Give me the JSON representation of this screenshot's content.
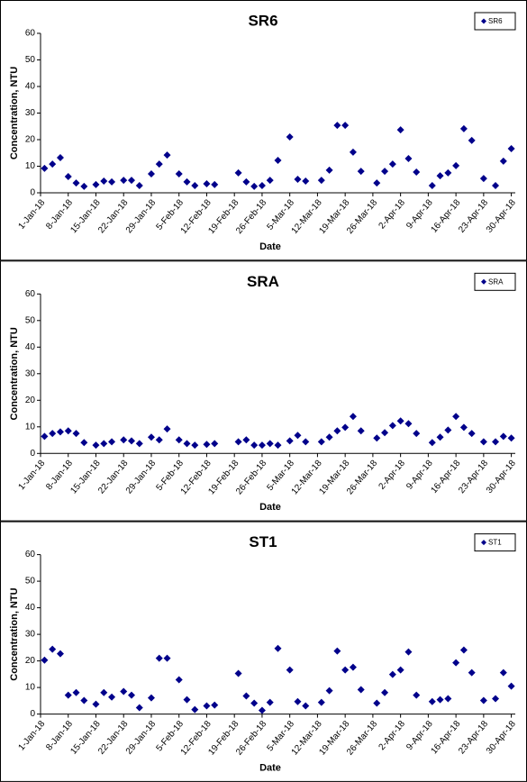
{
  "chart_data": [
    {
      "type": "scatter",
      "title": "SR6",
      "x_label": "Date",
      "y_label": "Concentration, NTU",
      "legend": "top-right",
      "marker": "diamond",
      "x": [
        "2018-01-02",
        "2018-01-04",
        "2018-01-06",
        "2018-01-08",
        "2018-01-10",
        "2018-01-12",
        "2018-01-15",
        "2018-01-17",
        "2018-01-19",
        "2018-01-22",
        "2018-01-24",
        "2018-01-26",
        "2018-01-29",
        "2018-01-31",
        "2018-02-02",
        "2018-02-05",
        "2018-02-07",
        "2018-02-09",
        "2018-02-12",
        "2018-02-14",
        "2018-02-20",
        "2018-02-22",
        "2018-02-24",
        "2018-02-26",
        "2018-02-28",
        "2018-03-02",
        "2018-03-05",
        "2018-03-07",
        "2018-03-09",
        "2018-03-13",
        "2018-03-15",
        "2018-03-17",
        "2018-03-19",
        "2018-03-21",
        "2018-03-23",
        "2018-03-27",
        "2018-03-29",
        "2018-03-31",
        "2018-04-02",
        "2018-04-04",
        "2018-04-06",
        "2018-04-10",
        "2018-04-12",
        "2018-04-14",
        "2018-04-16",
        "2018-04-18",
        "2018-04-20",
        "2018-04-23",
        "2018-04-26",
        "2018-04-28",
        "2018-04-30"
      ],
      "series": [
        {
          "name": "SR6",
          "color": "#00008b",
          "values": [
            9.2,
            10.8,
            13.2,
            6.1,
            3.7,
            2.4,
            3.1,
            4.4,
            4.1,
            4.7,
            4.7,
            2.7,
            7.1,
            10.8,
            14.2,
            7.1,
            4.1,
            2.7,
            3.4,
            3.1,
            7.5,
            4.1,
            2.4,
            2.7,
            4.7,
            12.2,
            21,
            5.1,
            4.4,
            4.7,
            8.5,
            25.4,
            25.4,
            15.3,
            8.1,
            3.7,
            8.1,
            10.8,
            23.7,
            12.9,
            7.8,
            2.7,
            6.4,
            7.5,
            10.2,
            24.1,
            19.7,
            5.4,
            2.7,
            11.9,
            16.6
          ]
        }
      ],
      "xlim": [
        "2018-01-01",
        "2018-05-01"
      ],
      "xticks": [
        {
          "value": "2018-01-01",
          "label": "1-Jan-18"
        },
        {
          "value": "2018-01-08",
          "label": "8-Jan-18"
        },
        {
          "value": "2018-01-15",
          "label": "15-Jan-18"
        },
        {
          "value": "2018-01-22",
          "label": "22-Jan-18"
        },
        {
          "value": "2018-01-29",
          "label": "29-Jan-18"
        },
        {
          "value": "2018-02-05",
          "label": "5-Feb-18"
        },
        {
          "value": "2018-02-12",
          "label": "12-Feb-18"
        },
        {
          "value": "2018-02-19",
          "label": "19-Feb-18"
        },
        {
          "value": "2018-02-26",
          "label": "26-Feb-18"
        },
        {
          "value": "2018-03-05",
          "label": "5-Mar-18"
        },
        {
          "value": "2018-03-12",
          "label": "12-Mar-18"
        },
        {
          "value": "2018-03-19",
          "label": "19-Mar-18"
        },
        {
          "value": "2018-03-26",
          "label": "26-Mar-18"
        },
        {
          "value": "2018-04-02",
          "label": "2-Apr-18"
        },
        {
          "value": "2018-04-09",
          "label": "9-Apr-18"
        },
        {
          "value": "2018-04-16",
          "label": "16-Apr-18"
        },
        {
          "value": "2018-04-23",
          "label": "23-Apr-18"
        },
        {
          "value": "2018-04-30",
          "label": "30-Apr-18"
        }
      ],
      "ylim": [
        0,
        60
      ],
      "yticks": [
        0,
        10,
        20,
        30,
        40,
        50,
        60
      ]
    },
    {
      "type": "scatter",
      "title": "SRA",
      "x_label": "Date",
      "y_label": "Concentration, NTU",
      "legend": "top-right",
      "marker": "diamond",
      "x": [
        "2018-01-02",
        "2018-01-04",
        "2018-01-06",
        "2018-01-08",
        "2018-01-10",
        "2018-01-12",
        "2018-01-15",
        "2018-01-17",
        "2018-01-19",
        "2018-01-22",
        "2018-01-24",
        "2018-01-26",
        "2018-01-29",
        "2018-01-31",
        "2018-02-02",
        "2018-02-05",
        "2018-02-07",
        "2018-02-09",
        "2018-02-12",
        "2018-02-14",
        "2018-02-20",
        "2018-02-22",
        "2018-02-24",
        "2018-02-26",
        "2018-02-28",
        "2018-03-02",
        "2018-03-05",
        "2018-03-07",
        "2018-03-09",
        "2018-03-13",
        "2018-03-15",
        "2018-03-17",
        "2018-03-19",
        "2018-03-21",
        "2018-03-23",
        "2018-03-27",
        "2018-03-29",
        "2018-03-31",
        "2018-04-02",
        "2018-04-04",
        "2018-04-06",
        "2018-04-10",
        "2018-04-12",
        "2018-04-14",
        "2018-04-16",
        "2018-04-18",
        "2018-04-20",
        "2018-04-23",
        "2018-04-26",
        "2018-04-28",
        "2018-04-30"
      ],
      "series": [
        {
          "name": "SRA",
          "color": "#00008b",
          "values": [
            6.4,
            7.5,
            8.1,
            8.5,
            7.5,
            4.1,
            3.1,
            3.7,
            4.4,
            5.1,
            4.7,
            3.7,
            6.1,
            5.1,
            9.2,
            5.1,
            3.7,
            3.1,
            3.4,
            3.7,
            4.4,
            5.1,
            3.1,
            3.1,
            3.7,
            3.1,
            4.7,
            6.8,
            4.4,
            4.4,
            6.1,
            8.5,
            9.8,
            13.9,
            8.5,
            5.8,
            7.8,
            10.5,
            12.2,
            11.2,
            7.5,
            4.1,
            6.1,
            8.8,
            13.9,
            9.8,
            7.5,
            4.4,
            4.4,
            6.4,
            5.8
          ]
        }
      ],
      "xlim": [
        "2018-01-01",
        "2018-05-01"
      ],
      "xticks": [
        {
          "value": "2018-01-01",
          "label": "1-Jan-18"
        },
        {
          "value": "2018-01-08",
          "label": "8-Jan-18"
        },
        {
          "value": "2018-01-15",
          "label": "15-Jan-18"
        },
        {
          "value": "2018-01-22",
          "label": "22-Jan-18"
        },
        {
          "value": "2018-01-29",
          "label": "29-Jan-18"
        },
        {
          "value": "2018-02-05",
          "label": "5-Feb-18"
        },
        {
          "value": "2018-02-12",
          "label": "12-Feb-18"
        },
        {
          "value": "2018-02-19",
          "label": "19-Feb-18"
        },
        {
          "value": "2018-02-26",
          "label": "26-Feb-18"
        },
        {
          "value": "2018-03-05",
          "label": "5-Mar-18"
        },
        {
          "value": "2018-03-12",
          "label": "12-Mar-18"
        },
        {
          "value": "2018-03-19",
          "label": "19-Mar-18"
        },
        {
          "value": "2018-03-26",
          "label": "26-Mar-18"
        },
        {
          "value": "2018-04-02",
          "label": "2-Apr-18"
        },
        {
          "value": "2018-04-09",
          "label": "9-Apr-18"
        },
        {
          "value": "2018-04-16",
          "label": "16-Apr-18"
        },
        {
          "value": "2018-04-23",
          "label": "23-Apr-18"
        },
        {
          "value": "2018-04-30",
          "label": "30-Apr-18"
        }
      ],
      "ylim": [
        0,
        60
      ],
      "yticks": [
        0,
        10,
        20,
        30,
        40,
        50,
        60
      ]
    },
    {
      "type": "scatter",
      "title": "ST1",
      "x_label": "Date",
      "y_label": "Concentration, NTU",
      "legend": "top-right",
      "marker": "diamond",
      "x": [
        "2018-01-02",
        "2018-01-04",
        "2018-01-06",
        "2018-01-08",
        "2018-01-10",
        "2018-01-12",
        "2018-01-15",
        "2018-01-17",
        "2018-01-19",
        "2018-01-22",
        "2018-01-24",
        "2018-01-26",
        "2018-01-29",
        "2018-01-31",
        "2018-02-02",
        "2018-02-05",
        "2018-02-07",
        "2018-02-09",
        "2018-02-12",
        "2018-02-14",
        "2018-02-20",
        "2018-02-22",
        "2018-02-24",
        "2018-02-26",
        "2018-02-28",
        "2018-03-02",
        "2018-03-05",
        "2018-03-07",
        "2018-03-09",
        "2018-03-13",
        "2018-03-15",
        "2018-03-17",
        "2018-03-19",
        "2018-03-21",
        "2018-03-23",
        "2018-03-27",
        "2018-03-29",
        "2018-03-31",
        "2018-04-02",
        "2018-04-04",
        "2018-04-06",
        "2018-04-10",
        "2018-04-12",
        "2018-04-14",
        "2018-04-16",
        "2018-04-18",
        "2018-04-20",
        "2018-04-23",
        "2018-04-26",
        "2018-04-28",
        "2018-04-30"
      ],
      "series": [
        {
          "name": "ST1",
          "color": "#00008b",
          "values": [
            20.3,
            24.4,
            22.7,
            7.1,
            8.1,
            5.1,
            3.7,
            8.1,
            6.4,
            8.5,
            7.1,
            2.4,
            6.1,
            21,
            21,
            12.9,
            5.4,
            1.7,
            3.1,
            3.4,
            15.3,
            6.8,
            4.1,
            1.4,
            4.4,
            24.7,
            16.6,
            4.7,
            3.1,
            4.4,
            8.8,
            23.7,
            16.6,
            17.6,
            9.2,
            4.1,
            8.1,
            14.9,
            16.6,
            23.4,
            7.1,
            4.7,
            5.4,
            5.8,
            19.3,
            24.1,
            15.6,
            5.1,
            5.8,
            15.6,
            10.5
          ]
        }
      ],
      "xlim": [
        "2018-01-01",
        "2018-05-01"
      ],
      "xticks": [
        {
          "value": "2018-01-01",
          "label": "1-Jan-18"
        },
        {
          "value": "2018-01-08",
          "label": "8-Jan-18"
        },
        {
          "value": "2018-01-15",
          "label": "15-Jan-18"
        },
        {
          "value": "2018-01-22",
          "label": "22-Jan-18"
        },
        {
          "value": "2018-01-29",
          "label": "29-Jan-18"
        },
        {
          "value": "2018-02-05",
          "label": "5-Feb-18"
        },
        {
          "value": "2018-02-12",
          "label": "12-Feb-18"
        },
        {
          "value": "2018-02-19",
          "label": "19-Feb-18"
        },
        {
          "value": "2018-02-26",
          "label": "26-Feb-18"
        },
        {
          "value": "2018-03-05",
          "label": "5-Mar-18"
        },
        {
          "value": "2018-03-12",
          "label": "12-Mar-18"
        },
        {
          "value": "2018-03-19",
          "label": "19-Mar-18"
        },
        {
          "value": "2018-03-26",
          "label": "26-Mar-18"
        },
        {
          "value": "2018-04-02",
          "label": "2-Apr-18"
        },
        {
          "value": "2018-04-09",
          "label": "9-Apr-18"
        },
        {
          "value": "2018-04-16",
          "label": "16-Apr-18"
        },
        {
          "value": "2018-04-23",
          "label": "23-Apr-18"
        },
        {
          "value": "2018-04-30",
          "label": "30-Apr-18"
        }
      ],
      "ylim": [
        0,
        60
      ],
      "yticks": [
        0,
        10,
        20,
        30,
        40,
        50,
        60
      ]
    }
  ]
}
